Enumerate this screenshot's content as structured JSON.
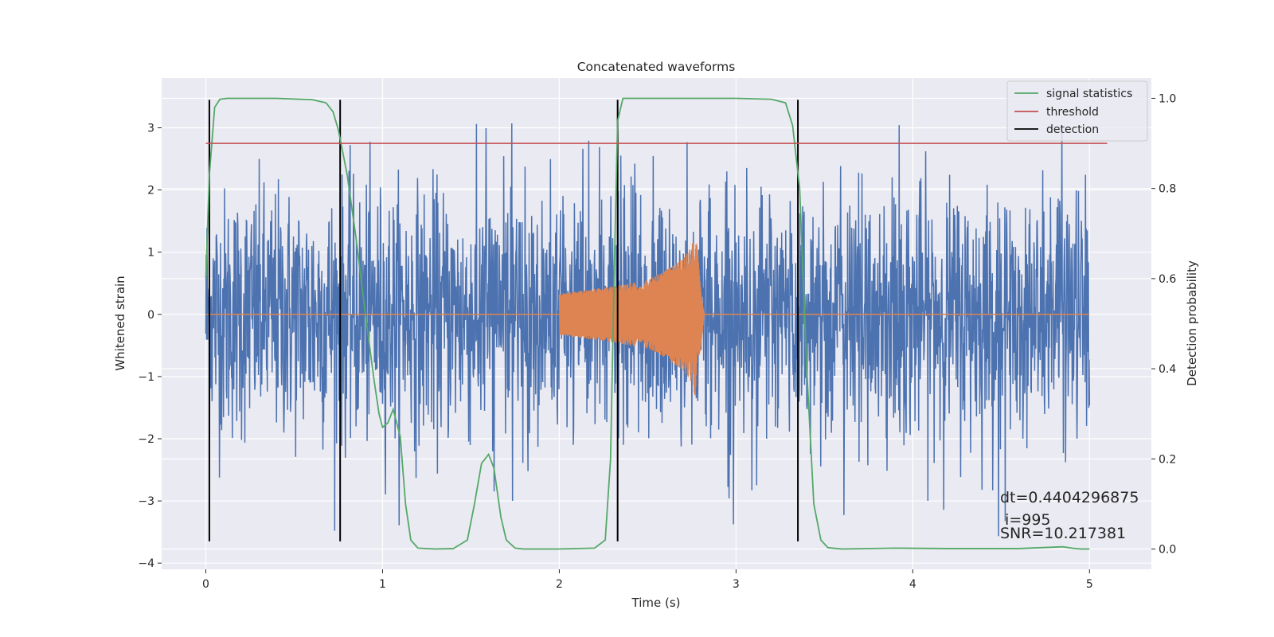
{
  "chart_data": {
    "type": "line",
    "title": "Concatenated waveforms",
    "xlabel": "Time (s)",
    "ylabel": "Whitened strain",
    "ylabel_right": "Detection probability",
    "xlim": [
      -0.25,
      5.35
    ],
    "ylim": [
      -4.1,
      3.8
    ],
    "ylim_right": [
      -0.045,
      1.045
    ],
    "xticks": [
      0,
      1,
      2,
      3,
      4,
      5
    ],
    "yticks": [
      -4,
      -3,
      -2,
      -1,
      0,
      1,
      2,
      3
    ],
    "yticks_right": [
      0.0,
      0.2,
      0.4,
      0.6,
      0.8,
      1.0
    ],
    "grid": true,
    "legend_position": "top-right",
    "legend": [
      {
        "label": "signal statistics",
        "color": "#55a868"
      },
      {
        "label": "threshold",
        "color": "#c44e52"
      },
      {
        "label": "detection",
        "color": "#000000"
      }
    ],
    "colors": {
      "noise": "#4c72b0",
      "waveform": "#dd8452",
      "signal_statistics": "#55a868",
      "threshold": "#c44e52",
      "detection": "#000000",
      "plot_background": "#eaeaf2",
      "grid": "#ffffff"
    },
    "noise_series": {
      "x_range": [
        0,
        5
      ],
      "approx_amplitude": 3.0,
      "peak_max": 3.08,
      "peak_min": -3.65
    },
    "waveform_series": {
      "x_range": [
        2.0,
        2.82
      ],
      "envelope": [
        [
          2.0,
          0.33
        ],
        [
          2.3,
          0.45
        ],
        [
          2.5,
          0.55
        ],
        [
          2.6,
          0.7
        ],
        [
          2.7,
          0.9
        ],
        [
          2.75,
          1.1
        ],
        [
          2.77,
          1.35
        ],
        [
          2.79,
          0.8
        ],
        [
          2.82,
          0.0
        ]
      ],
      "ringdown_min": -1.35
    },
    "signal_statistics": {
      "x": [
        0.0,
        0.02,
        0.05,
        0.08,
        0.12,
        0.2,
        0.4,
        0.6,
        0.68,
        0.72,
        0.75,
        0.8,
        0.85,
        0.9,
        0.95,
        0.98,
        1.0,
        1.03,
        1.06,
        1.1,
        1.13,
        1.16,
        1.2,
        1.3,
        1.4,
        1.48,
        1.52,
        1.56,
        1.6,
        1.63,
        1.67,
        1.7,
        1.75,
        1.8,
        2.0,
        2.2,
        2.26,
        2.29,
        2.31,
        2.33,
        2.36,
        2.4,
        2.6,
        3.0,
        3.2,
        3.28,
        3.32,
        3.36,
        3.4,
        3.44,
        3.48,
        3.52,
        3.6,
        3.9,
        4.2,
        4.6,
        4.85,
        4.9,
        4.95,
        5.0
      ],
      "y": [
        0.6,
        0.83,
        0.98,
        0.998,
        1.0,
        1.0,
        1.0,
        0.997,
        0.99,
        0.97,
        0.93,
        0.83,
        0.69,
        0.53,
        0.38,
        0.3,
        0.27,
        0.28,
        0.31,
        0.25,
        0.1,
        0.02,
        0.002,
        0.0,
        0.001,
        0.02,
        0.1,
        0.19,
        0.21,
        0.18,
        0.07,
        0.02,
        0.002,
        0.0,
        0.0,
        0.002,
        0.02,
        0.2,
        0.6,
        0.95,
        1.0,
        1.0,
        1.0,
        1.0,
        0.998,
        0.99,
        0.94,
        0.8,
        0.4,
        0.1,
        0.02,
        0.003,
        0.0,
        0.002,
        0.001,
        0.001,
        0.005,
        0.002,
        0.0,
        0.0
      ]
    },
    "threshold": {
      "value": 0.9,
      "x_range": [
        0.0,
        5.1
      ]
    },
    "detections": [
      0.02,
      0.76,
      2.33,
      3.35
    ],
    "annotations": [
      {
        "text": "dt=0.4404296875"
      },
      {
        "text": " i=995"
      },
      {
        "text": "SNR=10.217381"
      }
    ]
  }
}
